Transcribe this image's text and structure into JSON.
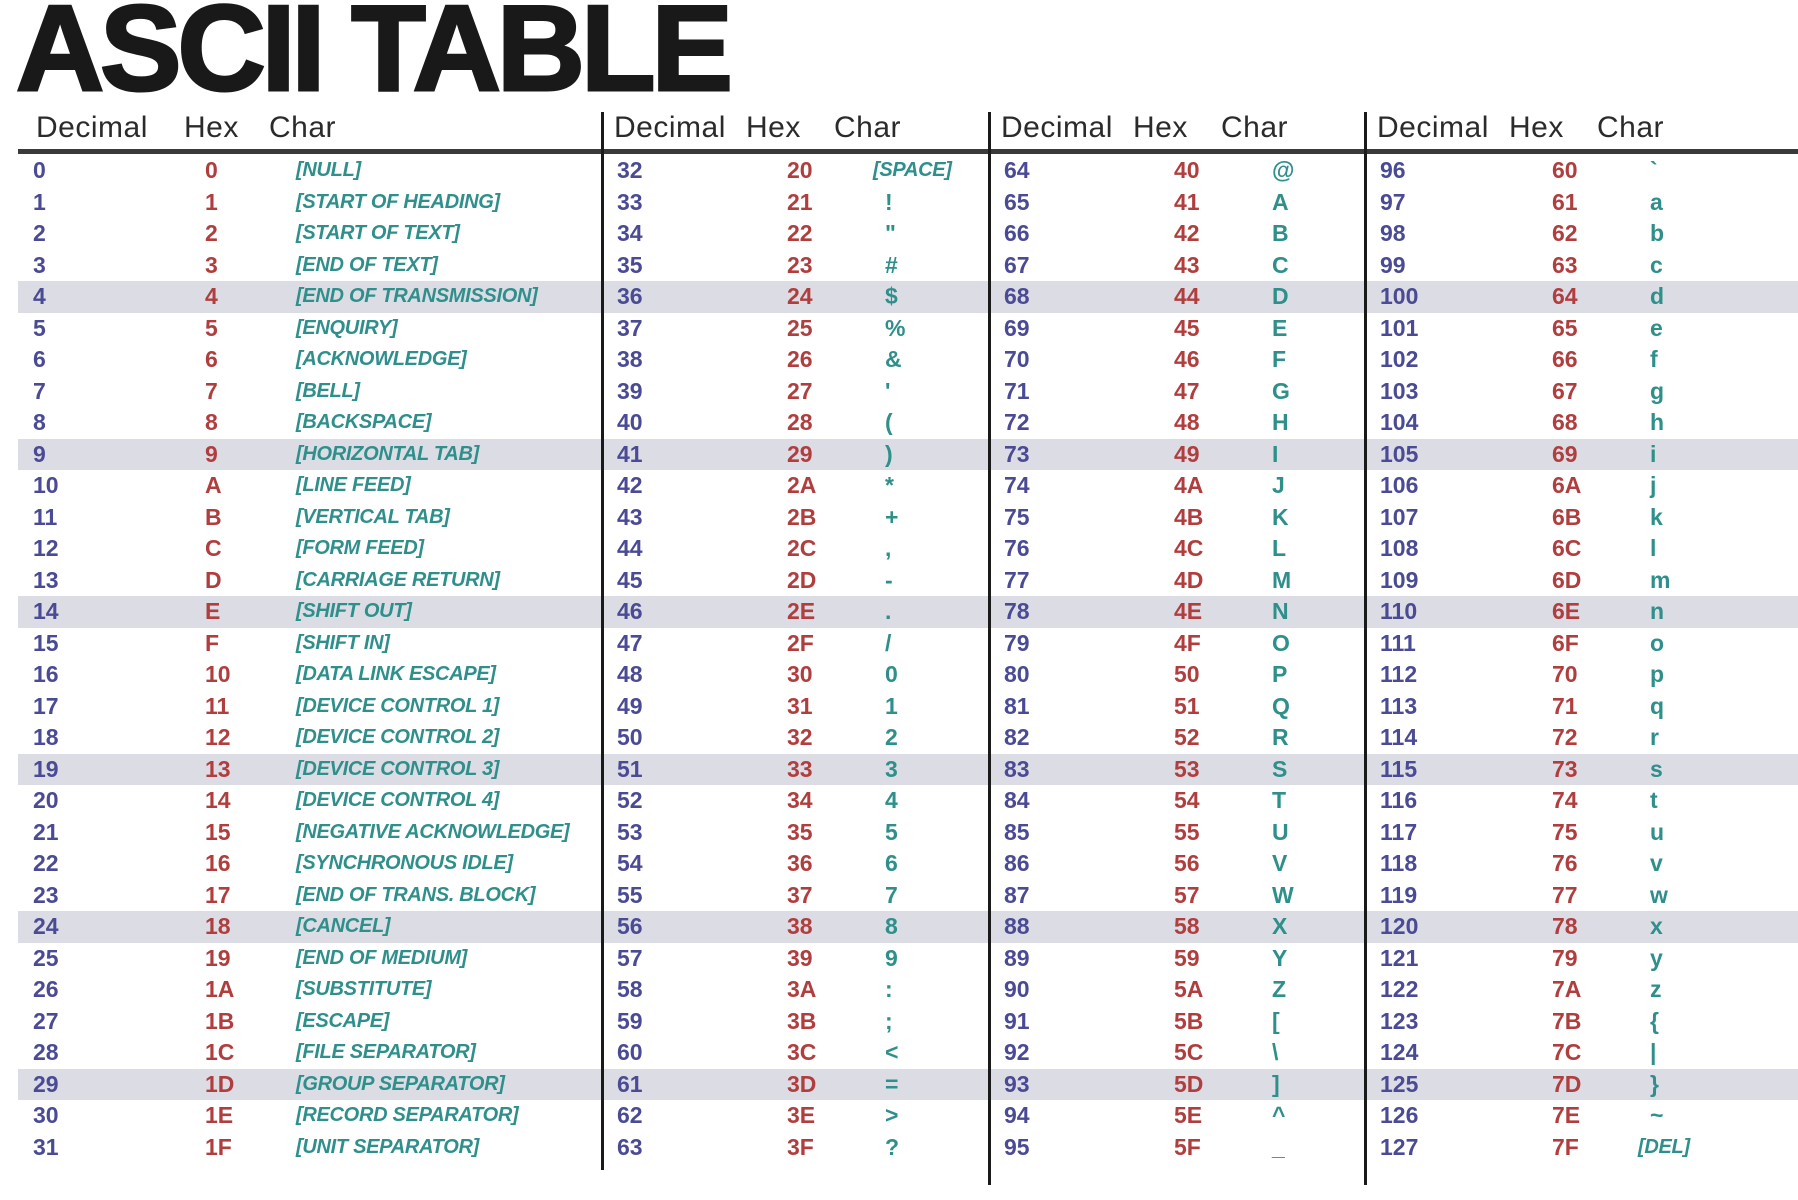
{
  "title": "ASCII TABLE",
  "columns": [
    "Decimal",
    "Hex",
    "Char"
  ],
  "colors": {
    "title": "#191919",
    "header": "#2b2b2b",
    "rule": "#3a3a3a",
    "vline": "#1a1a1a",
    "band": "#dcdce5",
    "decimal": "#4a4a95",
    "hex": "#b13e3e",
    "char": "#2e8f8b"
  },
  "highlight_row_indices": [
    4,
    9,
    14,
    19,
    24,
    29
  ],
  "entries": [
    [
      "0",
      "0",
      "[NULL]"
    ],
    [
      "1",
      "1",
      "[START OF HEADING]"
    ],
    [
      "2",
      "2",
      "[START OF TEXT]"
    ],
    [
      "3",
      "3",
      "[END OF TEXT]"
    ],
    [
      "4",
      "4",
      "[END OF TRANSMISSION]"
    ],
    [
      "5",
      "5",
      "[ENQUIRY]"
    ],
    [
      "6",
      "6",
      "[ACKNOWLEDGE]"
    ],
    [
      "7",
      "7",
      "[BELL]"
    ],
    [
      "8",
      "8",
      "[BACKSPACE]"
    ],
    [
      "9",
      "9",
      "[HORIZONTAL TAB]"
    ],
    [
      "10",
      "A",
      "[LINE FEED]"
    ],
    [
      "11",
      "B",
      "[VERTICAL TAB]"
    ],
    [
      "12",
      "C",
      "[FORM FEED]"
    ],
    [
      "13",
      "D",
      "[CARRIAGE RETURN]"
    ],
    [
      "14",
      "E",
      "[SHIFT OUT]"
    ],
    [
      "15",
      "F",
      "[SHIFT IN]"
    ],
    [
      "16",
      "10",
      "[DATA LINK ESCAPE]"
    ],
    [
      "17",
      "11",
      "[DEVICE CONTROL 1]"
    ],
    [
      "18",
      "12",
      "[DEVICE CONTROL 2]"
    ],
    [
      "19",
      "13",
      "[DEVICE CONTROL 3]"
    ],
    [
      "20",
      "14",
      "[DEVICE CONTROL 4]"
    ],
    [
      "21",
      "15",
      "[NEGATIVE ACKNOWLEDGE]"
    ],
    [
      "22",
      "16",
      "[SYNCHRONOUS IDLE]"
    ],
    [
      "23",
      "17",
      "[END OF TRANS. BLOCK]"
    ],
    [
      "24",
      "18",
      "[CANCEL]"
    ],
    [
      "25",
      "19",
      "[END OF MEDIUM]"
    ],
    [
      "26",
      "1A",
      "[SUBSTITUTE]"
    ],
    [
      "27",
      "1B",
      "[ESCAPE]"
    ],
    [
      "28",
      "1C",
      "[FILE SEPARATOR]"
    ],
    [
      "29",
      "1D",
      "[GROUP SEPARATOR]"
    ],
    [
      "30",
      "1E",
      "[RECORD SEPARATOR]"
    ],
    [
      "31",
      "1F",
      "[UNIT SEPARATOR]"
    ],
    [
      "32",
      "20",
      "[SPACE]"
    ],
    [
      "33",
      "21",
      "!"
    ],
    [
      "34",
      "22",
      "\""
    ],
    [
      "35",
      "23",
      "#"
    ],
    [
      "36",
      "24",
      "$"
    ],
    [
      "37",
      "25",
      "%"
    ],
    [
      "38",
      "26",
      "&"
    ],
    [
      "39",
      "27",
      "'"
    ],
    [
      "40",
      "28",
      "("
    ],
    [
      "41",
      "29",
      ")"
    ],
    [
      "42",
      "2A",
      "*"
    ],
    [
      "43",
      "2B",
      "+"
    ],
    [
      "44",
      "2C",
      ","
    ],
    [
      "45",
      "2D",
      "-"
    ],
    [
      "46",
      "2E",
      "."
    ],
    [
      "47",
      "2F",
      "/"
    ],
    [
      "48",
      "30",
      "0"
    ],
    [
      "49",
      "31",
      "1"
    ],
    [
      "50",
      "32",
      "2"
    ],
    [
      "51",
      "33",
      "3"
    ],
    [
      "52",
      "34",
      "4"
    ],
    [
      "53",
      "35",
      "5"
    ],
    [
      "54",
      "36",
      "6"
    ],
    [
      "55",
      "37",
      "7"
    ],
    [
      "56",
      "38",
      "8"
    ],
    [
      "57",
      "39",
      "9"
    ],
    [
      "58",
      "3A",
      ":"
    ],
    [
      "59",
      "3B",
      ";"
    ],
    [
      "60",
      "3C",
      "<"
    ],
    [
      "61",
      "3D",
      "="
    ],
    [
      "62",
      "3E",
      ">"
    ],
    [
      "63",
      "3F",
      "?"
    ],
    [
      "64",
      "40",
      "@"
    ],
    [
      "65",
      "41",
      "A"
    ],
    [
      "66",
      "42",
      "B"
    ],
    [
      "67",
      "43",
      "C"
    ],
    [
      "68",
      "44",
      "D"
    ],
    [
      "69",
      "45",
      "E"
    ],
    [
      "70",
      "46",
      "F"
    ],
    [
      "71",
      "47",
      "G"
    ],
    [
      "72",
      "48",
      "H"
    ],
    [
      "73",
      "49",
      "I"
    ],
    [
      "74",
      "4A",
      "J"
    ],
    [
      "75",
      "4B",
      "K"
    ],
    [
      "76",
      "4C",
      "L"
    ],
    [
      "77",
      "4D",
      "M"
    ],
    [
      "78",
      "4E",
      "N"
    ],
    [
      "79",
      "4F",
      "O"
    ],
    [
      "80",
      "50",
      "P"
    ],
    [
      "81",
      "51",
      "Q"
    ],
    [
      "82",
      "52",
      "R"
    ],
    [
      "83",
      "53",
      "S"
    ],
    [
      "84",
      "54",
      "T"
    ],
    [
      "85",
      "55",
      "U"
    ],
    [
      "86",
      "56",
      "V"
    ],
    [
      "87",
      "57",
      "W"
    ],
    [
      "88",
      "58",
      "X"
    ],
    [
      "89",
      "59",
      "Y"
    ],
    [
      "90",
      "5A",
      "Z"
    ],
    [
      "91",
      "5B",
      "["
    ],
    [
      "92",
      "5C",
      "\\"
    ],
    [
      "93",
      "5D",
      "]"
    ],
    [
      "94",
      "5E",
      "^"
    ],
    [
      "95",
      "5F",
      "_"
    ],
    [
      "96",
      "60",
      "`"
    ],
    [
      "97",
      "61",
      "a"
    ],
    [
      "98",
      "62",
      "b"
    ],
    [
      "99",
      "63",
      "c"
    ],
    [
      "100",
      "64",
      "d"
    ],
    [
      "101",
      "65",
      "e"
    ],
    [
      "102",
      "66",
      "f"
    ],
    [
      "103",
      "67",
      "g"
    ],
    [
      "104",
      "68",
      "h"
    ],
    [
      "105",
      "69",
      "i"
    ],
    [
      "106",
      "6A",
      "j"
    ],
    [
      "107",
      "6B",
      "k"
    ],
    [
      "108",
      "6C",
      "l"
    ],
    [
      "109",
      "6D",
      "m"
    ],
    [
      "110",
      "6E",
      "n"
    ],
    [
      "111",
      "6F",
      "o"
    ],
    [
      "112",
      "70",
      "p"
    ],
    [
      "113",
      "71",
      "q"
    ],
    [
      "114",
      "72",
      "r"
    ],
    [
      "115",
      "73",
      "s"
    ],
    [
      "116",
      "74",
      "t"
    ],
    [
      "117",
      "75",
      "u"
    ],
    [
      "118",
      "76",
      "v"
    ],
    [
      "119",
      "77",
      "w"
    ],
    [
      "120",
      "78",
      "x"
    ],
    [
      "121",
      "79",
      "y"
    ],
    [
      "122",
      "7A",
      "z"
    ],
    [
      "123",
      "7B",
      "{"
    ],
    [
      "124",
      "7C",
      "|"
    ],
    [
      "125",
      "7D",
      "}"
    ],
    [
      "126",
      "7E",
      "~"
    ],
    [
      "127",
      "7F",
      "[DEL]"
    ]
  ]
}
